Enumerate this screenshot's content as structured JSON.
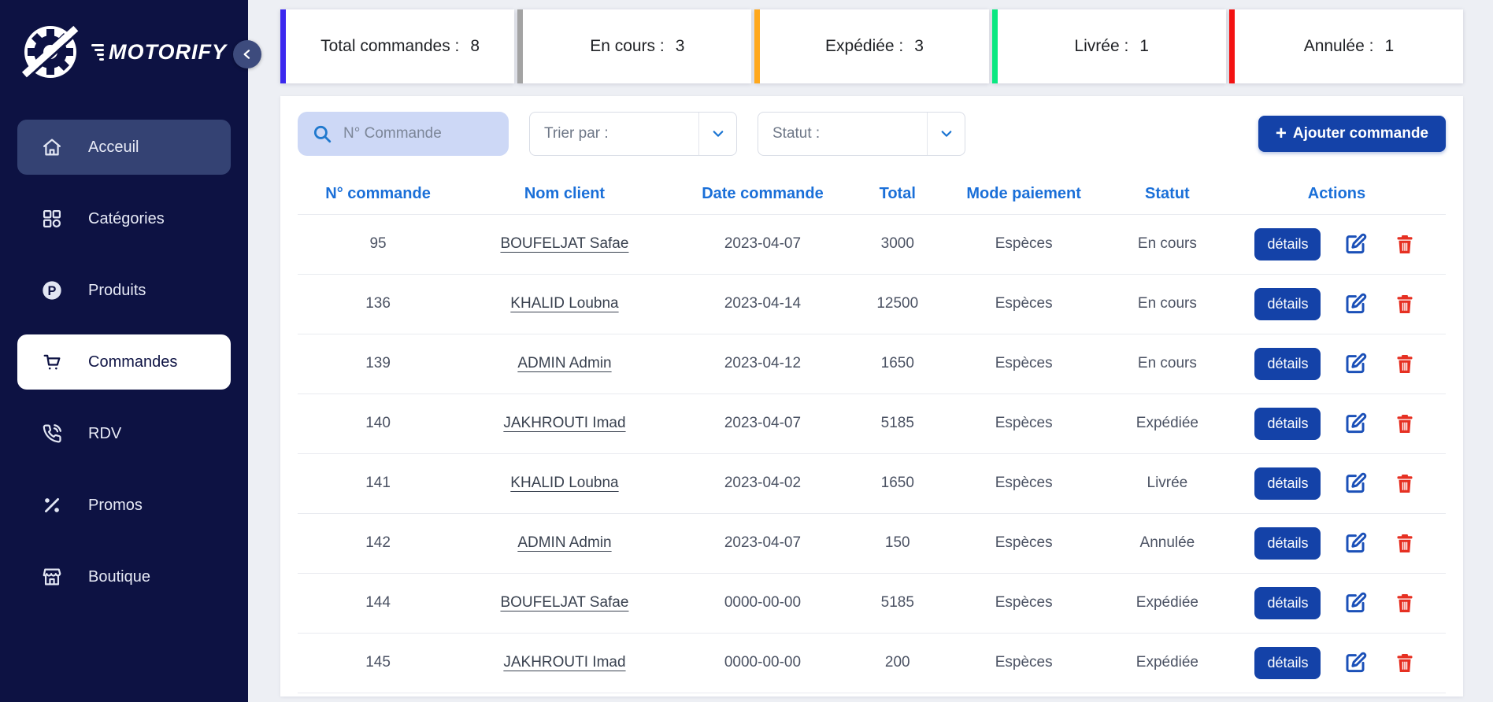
{
  "brand": {
    "name": "MOTORIFY"
  },
  "sidebar": {
    "items": [
      {
        "key": "acceuil",
        "label": "Acceuil",
        "icon": "home-icon",
        "state": "active-soft"
      },
      {
        "key": "categories",
        "label": "Catégories",
        "icon": "grid-icon",
        "state": ""
      },
      {
        "key": "produits",
        "label": "Produits",
        "icon": "p-circle-icon",
        "state": ""
      },
      {
        "key": "commandes",
        "label": "Commandes",
        "icon": "cart-icon",
        "state": "active-white"
      },
      {
        "key": "rdv",
        "label": "RDV",
        "icon": "phone-icon",
        "state": ""
      },
      {
        "key": "promos",
        "label": "Promos",
        "icon": "percent-icon",
        "state": ""
      },
      {
        "key": "boutique",
        "label": "Boutique",
        "icon": "store-icon",
        "state": ""
      }
    ]
  },
  "stats": [
    {
      "label": "Total commandes :",
      "value": "8",
      "accent": "#3b28ef"
    },
    {
      "label": "En cours :",
      "value": "3",
      "accent": "#a3a3a3"
    },
    {
      "label": "Expédiée :",
      "value": "3",
      "accent": "#ffa81d"
    },
    {
      "label": "Livrée :",
      "value": "1",
      "accent": "#0be881"
    },
    {
      "label": "Annulée :",
      "value": "1",
      "accent": "#f31212"
    }
  ],
  "filters": {
    "search_placeholder": "N° Commande",
    "sort_label": "Trier par :",
    "status_label": "Statut :",
    "add_button": "Ajouter commande"
  },
  "table": {
    "headers": [
      "N° commande",
      "Nom client",
      "Date commande",
      "Total",
      "Mode paiement",
      "Statut",
      "Actions"
    ],
    "details_label": "détails",
    "rows": [
      {
        "id": "95",
        "client": "BOUFELJAT Safae",
        "date": "2023-04-07",
        "total": "3000",
        "payment": "Espèces",
        "status": "En cours"
      },
      {
        "id": "136",
        "client": "KHALID Loubna",
        "date": "2023-04-14",
        "total": "12500",
        "payment": "Espèces",
        "status": "En cours"
      },
      {
        "id": "139",
        "client": "ADMIN Admin",
        "date": "2023-04-12",
        "total": "1650",
        "payment": "Espèces",
        "status": "En cours"
      },
      {
        "id": "140",
        "client": "JAKHROUTI Imad",
        "date": "2023-04-07",
        "total": "5185",
        "payment": "Espèces",
        "status": "Expédiée"
      },
      {
        "id": "141",
        "client": "KHALID Loubna",
        "date": "2023-04-02",
        "total": "1650",
        "payment": "Espèces",
        "status": "Livrée"
      },
      {
        "id": "142",
        "client": "ADMIN Admin",
        "date": "2023-04-07",
        "total": "150",
        "payment": "Espèces",
        "status": "Annulée"
      },
      {
        "id": "144",
        "client": "BOUFELJAT Safae",
        "date": "0000-00-00",
        "total": "5185",
        "payment": "Espèces",
        "status": "Expédiée"
      },
      {
        "id": "145",
        "client": "JAKHROUTI Imad",
        "date": "0000-00-00",
        "total": "200",
        "payment": "Espèces",
        "status": "Expédiée"
      }
    ]
  }
}
